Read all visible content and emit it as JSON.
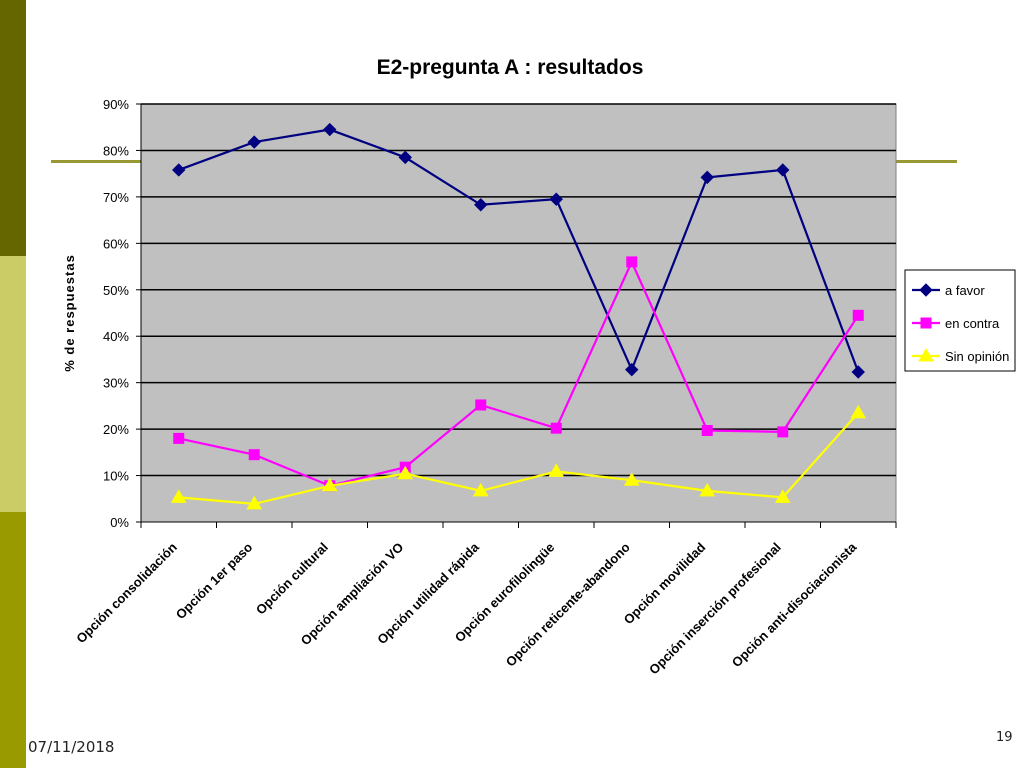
{
  "slide": {
    "date": "07/11/2018",
    "page_number": "19",
    "colors": {
      "stripe_dark": "#666600",
      "stripe_light": "#cccc66",
      "stripe_mid": "#999900",
      "accent_line": "#999933"
    }
  },
  "chart_data": {
    "type": "line",
    "title": "E2-pregunta A : resultados",
    "xlabel": "",
    "ylabel": "% de respuestas",
    "ylim": [
      0,
      90
    ],
    "y_ticks": [
      "0%",
      "10%",
      "20%",
      "30%",
      "40%",
      "50%",
      "60%",
      "70%",
      "80%",
      "90%"
    ],
    "grid": true,
    "plot_background": "#c0c0c0",
    "legend_position": "right",
    "categories": [
      "Opción consolidación",
      "Opción 1er paso",
      "Opción cultural",
      "Opción ampliación VO",
      "Opción utilidad rápida",
      "Opción eurofilolingüe",
      "Opción reticente-abandono",
      "Opción movilidad",
      "Opción inserción profesional",
      "Opción anti-disociacionista"
    ],
    "series": [
      {
        "name": "a favor",
        "color": "#000080",
        "marker": "diamond",
        "values": [
          75.8,
          81.8,
          84.5,
          78.5,
          68.3,
          69.5,
          32.8,
          74.2,
          75.8,
          32.3
        ]
      },
      {
        "name": "en contra",
        "color": "#ff00ff",
        "marker": "square",
        "values": [
          18.0,
          14.5,
          7.8,
          11.8,
          25.2,
          20.2,
          56.0,
          19.7,
          19.4,
          44.5
        ]
      },
      {
        "name": "Sin opinión",
        "color": "#ffff00",
        "marker": "triangle",
        "values": [
          5.3,
          3.9,
          7.8,
          10.4,
          6.7,
          10.9,
          9.0,
          6.7,
          5.3,
          23.5
        ]
      }
    ]
  }
}
